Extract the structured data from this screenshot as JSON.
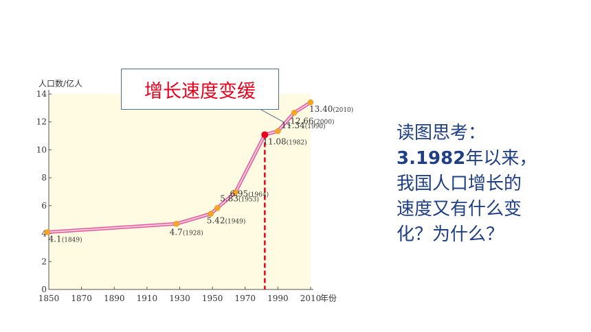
{
  "callout": {
    "text": "增长速度变缓"
  },
  "question": {
    "heading": "读图思考：",
    "number": "3.1982",
    "line1_rest": "年以来，",
    "line2": "我国人口增长的",
    "line3": "速度又有什么变",
    "line4": "化？为什么？"
  },
  "colors": {
    "plot_bg": "#fffbe2",
    "line_outer": "#e55a9b",
    "line_inner": "#f3cbe0",
    "point": "#f5a623",
    "highlight_point": "#e8001c",
    "guide_line": "#e8001c",
    "question_text": "#1f3f86",
    "callout_text": "#e8001c"
  },
  "chart_data": {
    "type": "line",
    "ylabel": "人口数/亿人",
    "xlabel": "年份",
    "xlim": [
      1850,
      2010
    ],
    "ylim": [
      0,
      14
    ],
    "x_ticks": [
      "1850",
      "1870",
      "1890",
      "1910",
      "1930",
      "1950",
      "1970",
      "1990",
      "2010"
    ],
    "y_ticks": [
      "0",
      "2",
      "4",
      "6",
      "8",
      "10",
      "12",
      "14"
    ],
    "grid": false,
    "series": [
      {
        "points": [
          {
            "x": 1849,
            "y": 4.1,
            "value_label": "4.1",
            "year_label": "(1849)"
          },
          {
            "x": 1928,
            "y": 4.7,
            "value_label": "4.7",
            "year_label": "(1928)"
          },
          {
            "x": 1949,
            "y": 5.42,
            "value_label": "5.42",
            "year_label": "(1949)"
          },
          {
            "x": 1953,
            "y": 5.83,
            "value_label": "5.83",
            "year_label": "(1953)"
          },
          {
            "x": 1964,
            "y": 6.95,
            "value_label": "6.95",
            "year_label": "(1964)"
          },
          {
            "x": 1982,
            "y": 11.08,
            "value_label": "11.08",
            "year_label": "(1982)",
            "highlight": true
          },
          {
            "x": 1990,
            "y": 11.34,
            "value_label": "11.34",
            "year_label": "(1990)"
          },
          {
            "x": 2000,
            "y": 12.66,
            "value_label": "12.66",
            "year_label": "(2000)"
          },
          {
            "x": 2010,
            "y": 13.4,
            "value_label": "13.40",
            "year_label": "(2010)"
          }
        ]
      }
    ]
  }
}
